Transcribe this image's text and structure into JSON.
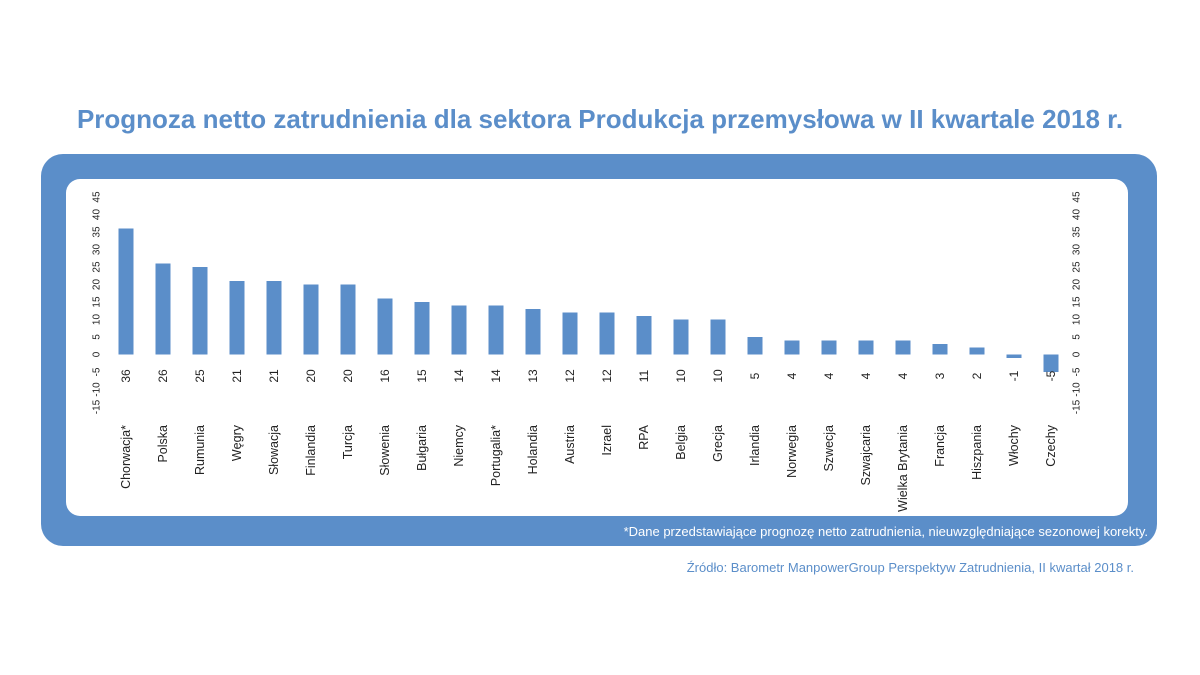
{
  "title": "Prognoza netto zatrudnienia dla sektora Produkcja przemysłowa w II kwartale 2018 r.",
  "footnote": "*Dane przedstawiające prognozę netto zatrudnienia, nieuwzględniające sezonowej korekty.",
  "source": "Źródło: Barometr ManpowerGroup Perspektyw Zatrudnienia, II kwartał 2018 r.",
  "colors": {
    "accent": "#5b8ec9",
    "bar": "#5b8ec9",
    "text": "#222222"
  },
  "chart_data": {
    "type": "bar",
    "categories": [
      "Chorwacja*",
      "Polska",
      "Rumunia",
      "Węgry",
      "Słowacja",
      "Finlandia",
      "Turcja",
      "Słowenia",
      "Bułgaria",
      "Niemcy",
      "Portugalia*",
      "Holandia",
      "Austria",
      "Izrael",
      "RPA",
      "Belgia",
      "Grecja",
      "Irlandia",
      "Norwegia",
      "Szwecja",
      "Szwajcaria",
      "Wielka Brytania",
      "Francja",
      "Hiszpania",
      "Włochy",
      "Czechy"
    ],
    "values": [
      36,
      26,
      25,
      21,
      21,
      20,
      20,
      16,
      15,
      14,
      14,
      13,
      12,
      12,
      11,
      10,
      10,
      5,
      4,
      4,
      4,
      4,
      3,
      2,
      -1,
      -5
    ],
    "value_labels": [
      "36",
      "26",
      "25",
      "21",
      "21",
      "20",
      "20",
      "16",
      "15",
      "14",
      "14",
      "13",
      "12",
      "12",
      "11",
      "10",
      "10",
      "5",
      "4",
      "4",
      "4",
      "4",
      "3",
      "2",
      "-1",
      "-5"
    ],
    "ylim": [
      -15,
      45
    ],
    "yticks": [
      -15,
      -10,
      -5,
      0,
      5,
      10,
      15,
      20,
      25,
      30,
      35,
      40,
      45
    ],
    "ytick_labels": [
      "-15",
      "-10",
      "-5",
      "0",
      "5",
      "10",
      "15",
      "20",
      "25",
      "30",
      "35",
      "40",
      "45"
    ],
    "grid": false,
    "legend": "none",
    "xlabel": "",
    "ylabel": ""
  }
}
